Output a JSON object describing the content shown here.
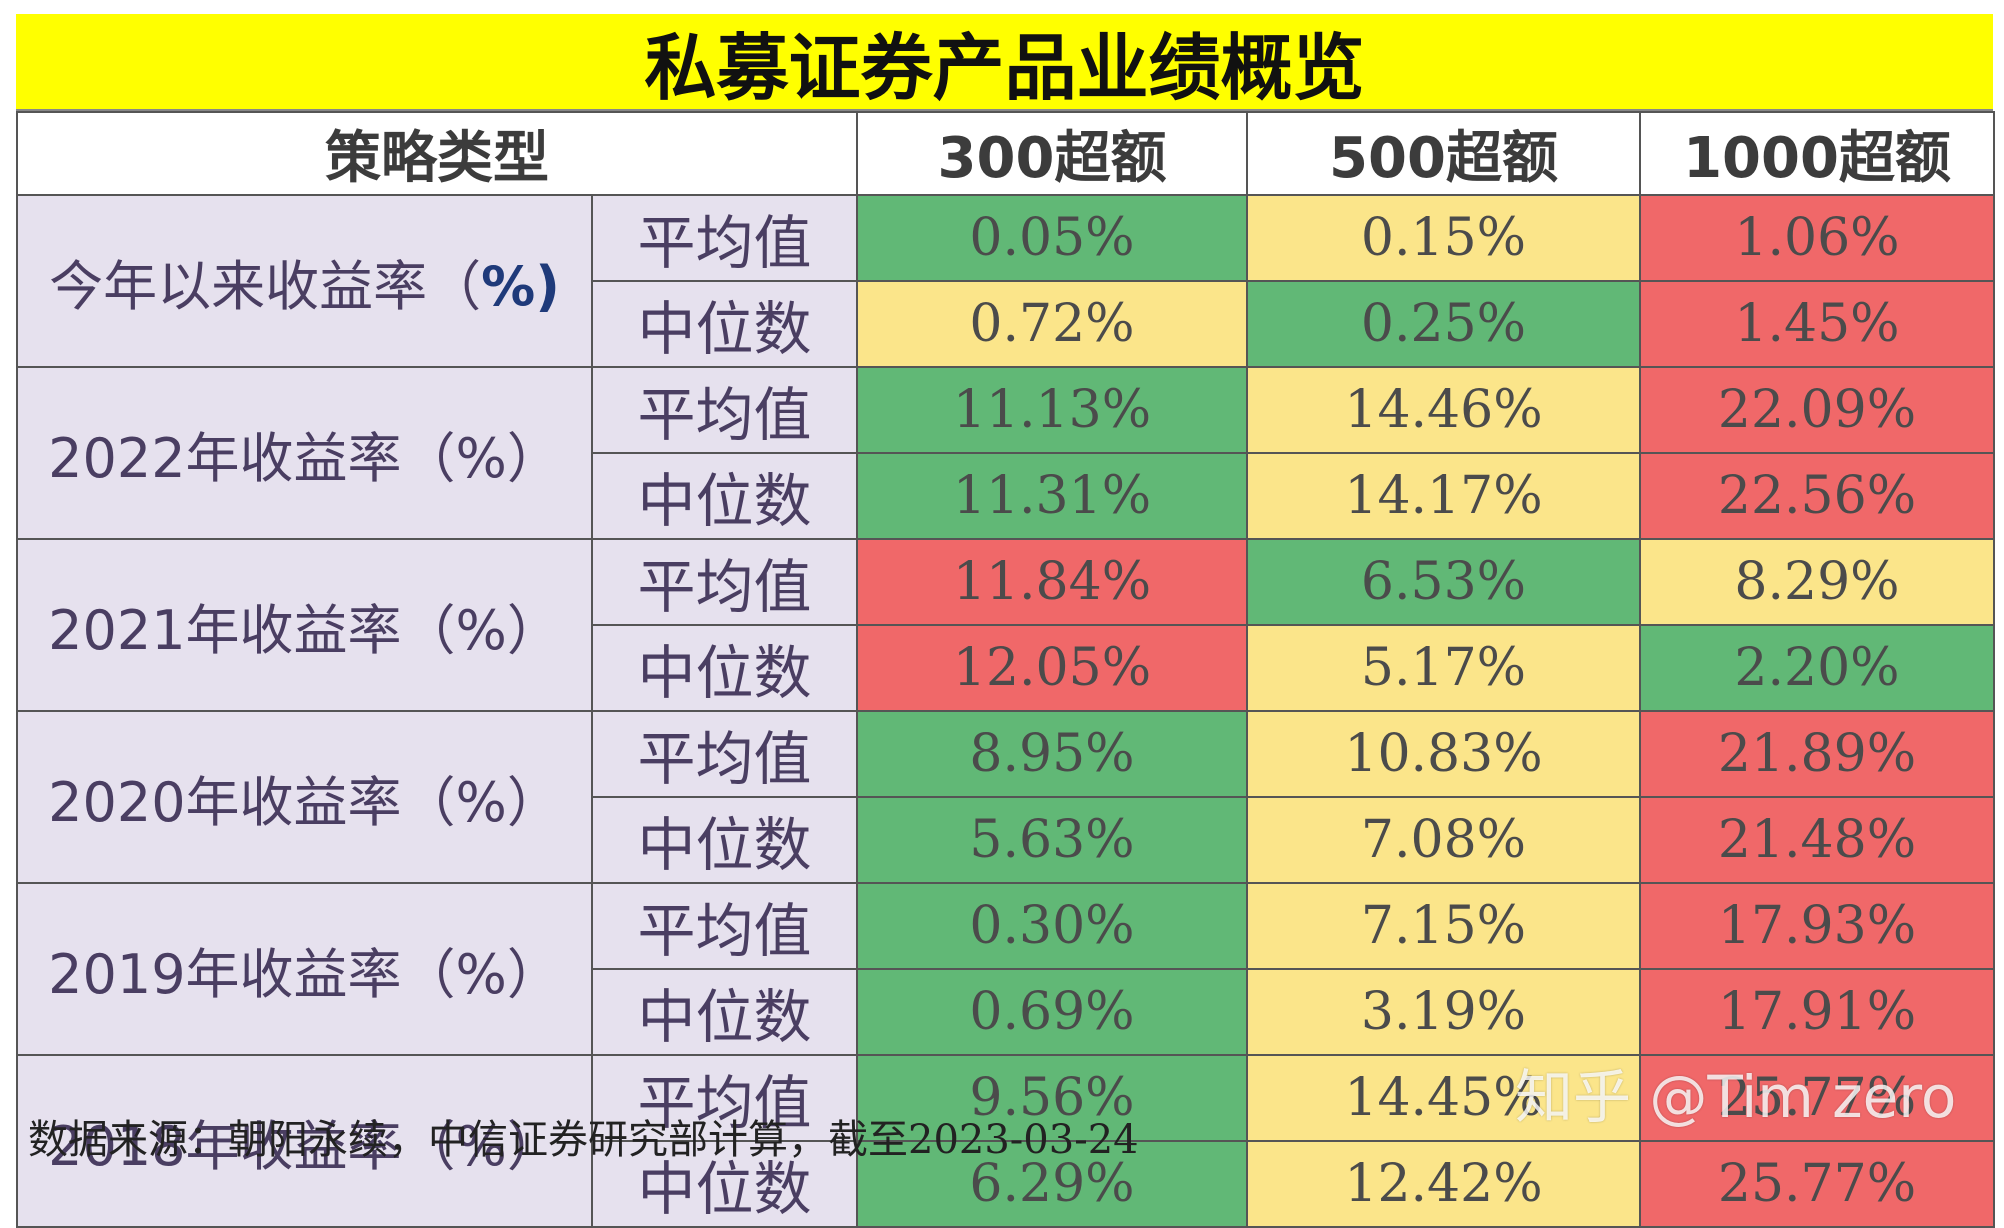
{
  "title": "私募证券产品业绩概览",
  "header": {
    "strategy_label": "策略类型",
    "columns": [
      "300超额",
      "500超额",
      "1000超额"
    ]
  },
  "rows": [
    {
      "category": "今年以来收益率（",
      "category_bold": "%)",
      "avg_label": "平均值",
      "median_label": "中位数",
      "avg": [
        "0.05%",
        "0.15%",
        "1.06%"
      ],
      "median": [
        "0.72%",
        "0.25%",
        "1.45%"
      ]
    },
    {
      "category": "2022年收益率（%）",
      "category_bold": "",
      "avg_label": "平均值",
      "median_label": "中位数",
      "avg": [
        "11.13%",
        "14.46%",
        "22.09%"
      ],
      "median": [
        "11.31%",
        "14.17%",
        "22.56%"
      ]
    },
    {
      "category": "2021年收益率（%）",
      "category_bold": "",
      "avg_label": "平均值",
      "median_label": "中位数",
      "avg": [
        "11.84%",
        "6.53%",
        "8.29%"
      ],
      "median": [
        "12.05%",
        "5.17%",
        "2.20%"
      ]
    },
    {
      "category": "2020年收益率（%）",
      "category_bold": "",
      "avg_label": "平均值",
      "median_label": "中位数",
      "avg": [
        "8.95%",
        "10.83%",
        "21.89%"
      ],
      "median": [
        "5.63%",
        "7.08%",
        "21.48%"
      ]
    },
    {
      "category": "2019年收益率（%）",
      "category_bold": "",
      "avg_label": "平均值",
      "median_label": "中位数",
      "avg": [
        "0.30%",
        "7.15%",
        "17.93%"
      ],
      "median": [
        "0.69%",
        "3.19%",
        "17.91%"
      ]
    },
    {
      "category": "2018年收益率（%）",
      "category_bold": "",
      "avg_label": "平均值",
      "median_label": "中位数",
      "avg": [
        "9.56%",
        "14.45%",
        "25.77%"
      ],
      "median": [
        "6.29%",
        "12.42%",
        "25.77%"
      ]
    }
  ],
  "footer": "数据来源：朝阳永续，中信证券研究部计算，截至2023-03-24",
  "watermark": "知乎 @Tim zero",
  "colors": {
    "title_bg": "#ffff00",
    "green": "#61b876",
    "yellow": "#fbe58a",
    "red": "#f06869",
    "label_bg": "#e6e1ee"
  }
}
